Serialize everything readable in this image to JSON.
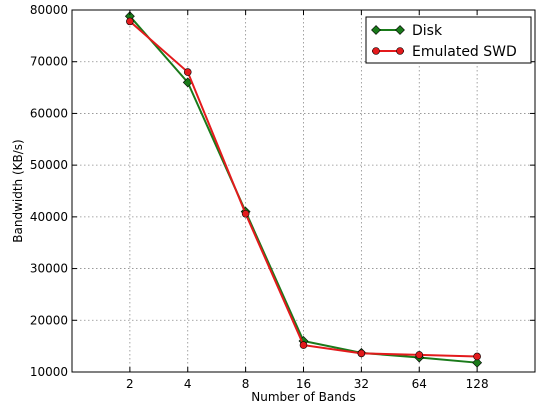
{
  "chart_data": {
    "type": "line",
    "xlabel": "Number of Bands",
    "ylabel": "Bandwidth (KB/s)",
    "x_scale": "log2",
    "x_categories": [
      "2",
      "4",
      "8",
      "16",
      "32",
      "64",
      "128"
    ],
    "xlim": [
      1,
      256
    ],
    "ylim": [
      10000,
      80000
    ],
    "y_ticks": [
      10000,
      20000,
      30000,
      40000,
      50000,
      60000,
      70000,
      80000
    ],
    "grid": true,
    "legend_position": "top-right",
    "series": [
      {
        "name": "Disk",
        "color": "#1a7a1a",
        "marker": "diamond",
        "x": [
          2,
          4,
          8,
          16,
          32,
          64,
          128
        ],
        "values": [
          78800,
          66000,
          41000,
          16000,
          13700,
          12800,
          11800
        ]
      },
      {
        "name": "Emulated SWD",
        "color": "#e31a1c",
        "marker": "circle",
        "x": [
          2,
          4,
          8,
          16,
          32,
          64,
          128
        ],
        "values": [
          77800,
          68000,
          40600,
          15200,
          13600,
          13300,
          13000
        ]
      }
    ]
  }
}
